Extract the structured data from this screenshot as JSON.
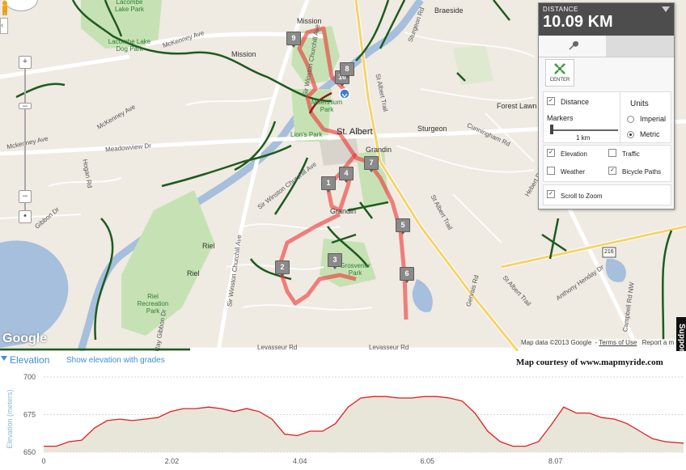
{
  "distance_panel": {
    "label": "DISTANCE",
    "value": "10.09 KM",
    "center_label": "CENTER",
    "distance_checkbox": "Distance",
    "units_label": "Units",
    "unit_imperial": "Imperial",
    "unit_metric": "Metric",
    "markers_label": "Markers",
    "markers_value": "1 km",
    "layers": [
      {
        "label": "Elevation",
        "checked": true
      },
      {
        "label": "Traffic",
        "checked": false
      },
      {
        "label": "Weather",
        "checked": false
      },
      {
        "label": "Bicycle Paths",
        "checked": true
      }
    ],
    "scroll_to_zoom": "Scroll to Zoom",
    "selected_unit": "Metric"
  },
  "map": {
    "city_label": "St. Albert",
    "places": [
      "Mission",
      "Mission",
      "Braeside",
      "Forest Lawn",
      "Sturgeon",
      "Grandin",
      "Grandin",
      "Riel",
      "Riel"
    ],
    "parks": [
      "Lacombe Lake Park",
      "Lacombe Lake Dog Park",
      "Millennium Park",
      "Lion's Park",
      "Grosvenor Park",
      "Riel Recreation Park"
    ],
    "roads": [
      "McKenney Ave",
      "McKenney Ave",
      "Mckenney Ave",
      "Meadowview Dr",
      "Hogan Rd",
      "Gibbon Dr",
      "Sir Winston Churchill Ave",
      "Sir Winston Churchill Ave",
      "Sir Winston Churchill Ave",
      "St Albert Trail",
      "St Albert Trail",
      "St Albert Trail",
      "Sturgeon Rd",
      "Cunningham Rd",
      "Hebert Rd",
      "Gervais Rd",
      "Anthony Henday Dr",
      "Campbell Rd NW",
      "Ray Gibbon Dr",
      "Levasseur Rd",
      "Levasseur Rd"
    ],
    "route_markers": [
      "10",
      "9",
      "8",
      "7",
      "4",
      "1",
      "5",
      "2",
      "3",
      "6"
    ],
    "highway_shield": "216",
    "google_logo": "Google",
    "attribution": "Map data ©2013 Google",
    "terms": "Terms of Use",
    "report": "Report a m",
    "courtesy": "Map courtesy of www.mapmyride.com",
    "side_tab": "Support"
  },
  "elevation": {
    "title": "Elevation",
    "grades_link": "Show elevation with grades",
    "y_label": "Elevation (meters)"
  },
  "chart_data": {
    "type": "area",
    "title": "Elevation",
    "xlabel": "",
    "ylabel": "Elevation (meters)",
    "y_ticks": [
      650,
      675,
      700
    ],
    "x_ticks": [
      "0",
      "2.02",
      "4.04",
      "6.05",
      "8.07"
    ],
    "xlim": [
      0,
      10.09
    ],
    "ylim": [
      650,
      700
    ],
    "line_color": "#e02020",
    "fill_color": "#e8e6d9",
    "series": [
      {
        "x": [
          0,
          0.2,
          0.4,
          0.6,
          0.8,
          1.0,
          1.2,
          1.4,
          1.6,
          1.8,
          2.0,
          2.2,
          2.4,
          2.6,
          2.8,
          3.0,
          3.2,
          3.4,
          3.6,
          3.8,
          4.0,
          4.2,
          4.4,
          4.6,
          4.8,
          5.0,
          5.2,
          5.4,
          5.6,
          5.8,
          6.0,
          6.2,
          6.4,
          6.6,
          6.8,
          7.0,
          7.2,
          7.4,
          7.6,
          7.8,
          8.0,
          8.2,
          8.4,
          8.6,
          8.8,
          9.0,
          9.2,
          9.4,
          9.6,
          9.8,
          10.09
        ],
        "values": [
          654,
          654,
          657,
          658,
          666,
          671,
          672,
          671,
          672,
          673,
          677,
          679,
          679,
          680,
          679,
          677,
          679,
          677,
          672,
          662,
          661,
          664,
          664,
          669,
          680,
          686,
          687,
          687,
          686,
          686,
          687,
          687,
          686,
          684,
          676,
          664,
          657,
          654,
          654,
          657,
          668,
          680,
          676,
          676,
          673,
          672,
          669,
          664,
          659,
          657,
          656
        ]
      }
    ]
  }
}
